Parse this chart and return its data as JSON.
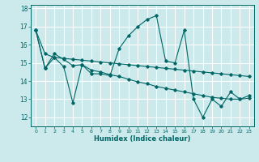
{
  "xlabel": "Humidex (Indice chaleur)",
  "ylabel": "",
  "bg_color": "#cce9eb",
  "grid_color": "#ffffff",
  "line_color": "#006666",
  "xlim": [
    -0.5,
    23.5
  ],
  "ylim": [
    11.5,
    18.2
  ],
  "yticks": [
    12,
    13,
    14,
    15,
    16,
    17,
    18
  ],
  "xtick_labels": [
    "0",
    "1",
    "2",
    "3",
    "4",
    "5",
    "6",
    "7",
    "8",
    "9",
    "10",
    "11",
    "12",
    "13",
    "14",
    "15",
    "16",
    "17",
    "18",
    "19",
    "20",
    "21",
    "22",
    "23"
  ],
  "series": [
    [
      16.8,
      14.7,
      15.3,
      14.8,
      12.8,
      14.9,
      14.4,
      14.4,
      14.3,
      15.8,
      16.5,
      17.0,
      17.4,
      17.6,
      15.1,
      15.0,
      16.8,
      13.0,
      12.0,
      13.0,
      12.6,
      13.4,
      13.0,
      13.2
    ],
    [
      16.8,
      14.7,
      15.5,
      15.2,
      14.85,
      14.9,
      14.6,
      14.5,
      14.35,
      14.25,
      14.1,
      13.95,
      13.85,
      13.7,
      13.6,
      13.5,
      13.4,
      13.3,
      13.2,
      13.1,
      13.05,
      13.0,
      13.0,
      13.05
    ],
    [
      16.8,
      15.5,
      15.3,
      15.25,
      15.2,
      15.15,
      15.1,
      15.05,
      15.0,
      14.95,
      14.9,
      14.85,
      14.8,
      14.75,
      14.7,
      14.65,
      14.6,
      14.55,
      14.5,
      14.45,
      14.4,
      14.35,
      14.3,
      14.25
    ]
  ]
}
